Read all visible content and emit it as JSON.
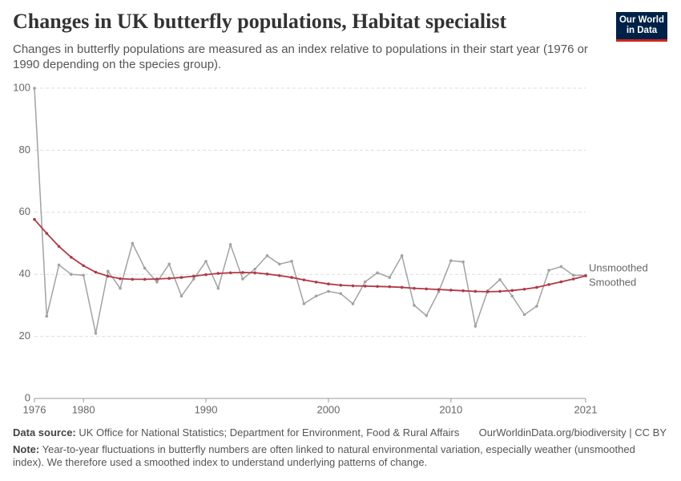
{
  "chart_data": {
    "type": "line",
    "title": "Changes in UK butterfly populations, Habitat specialist",
    "subtitle": "Changes in butterfly populations are measured as an index relative to populations in their start year (1976 or 1990 depending on the species group).",
    "logo": [
      "Our World",
      "in Data"
    ],
    "source_label": "Data source:",
    "source": "UK Office for National Statistics; Department for Environment, Food & Rural Affairs",
    "license": "OurWorldinData.org/biodiversity | CC BY",
    "note_label": "Note:",
    "note": "Year-to-year fluctuations in butterfly numbers are often linked to natural environmental variation, especially weather (unsmoothed index). We therefore used a smoothed index to understand underlying patterns of change.",
    "x": [
      1976,
      1977,
      1978,
      1979,
      1980,
      1981,
      1982,
      1983,
      1984,
      1985,
      1986,
      1987,
      1988,
      1989,
      1990,
      1991,
      1992,
      1993,
      1994,
      1995,
      1996,
      1997,
      1998,
      1999,
      2000,
      2001,
      2002,
      2003,
      2004,
      2005,
      2006,
      2007,
      2008,
      2009,
      2010,
      2011,
      2012,
      2013,
      2014,
      2015,
      2016,
      2017,
      2018,
      2019,
      2020,
      2021
    ],
    "series": [
      {
        "name": "Unsmoothed",
        "color": "#a2a2a2",
        "values": [
          100,
          26.5,
          43,
          40,
          39.7,
          21,
          41,
          35.5,
          50,
          42,
          37.5,
          43.3,
          33,
          38.5,
          44.2,
          35.5,
          49.6,
          38.5,
          41.7,
          46,
          43.3,
          44.2,
          30.5,
          33,
          34.5,
          33.8,
          30.5,
          37.6,
          40.5,
          39,
          46,
          30,
          26.7,
          34.4,
          44.4,
          44,
          23.3,
          34.7,
          38.3,
          33,
          27,
          29.7,
          41.3,
          42.5,
          39.7,
          39.7
        ]
      },
      {
        "name": "Smoothed",
        "color": "#b13946",
        "values": [
          57.7,
          53.2,
          49,
          45.5,
          42.8,
          40.7,
          39.4,
          38.6,
          38.4,
          38.4,
          38.5,
          38.7,
          39,
          39.4,
          39.9,
          40.3,
          40.5,
          40.6,
          40.5,
          40.1,
          39.6,
          39,
          38.2,
          37.5,
          36.9,
          36.5,
          36.3,
          36.2,
          36.1,
          36,
          35.8,
          35.5,
          35.3,
          35.1,
          34.9,
          34.7,
          34.5,
          34.4,
          34.5,
          34.8,
          35.2,
          35.8,
          36.7,
          37.6,
          38.5,
          39.5
        ]
      }
    ],
    "xlim": [
      1976,
      2021
    ],
    "xticks": [
      1976,
      1980,
      1990,
      2000,
      2010,
      2021
    ],
    "ylim": [
      0,
      100
    ],
    "yticks": [
      0,
      20,
      40,
      60,
      80,
      100
    ],
    "grid": true
  }
}
